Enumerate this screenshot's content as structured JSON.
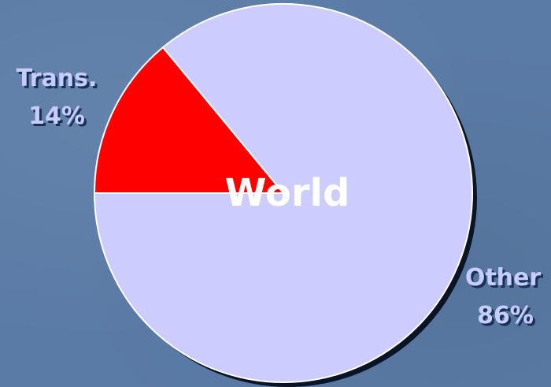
{
  "chart_data": {
    "type": "pie",
    "title": "",
    "center_label": "World",
    "slices": [
      {
        "name": "Trans.",
        "value": 14,
        "value_label": "14%",
        "color": "#ff0000"
      },
      {
        "name": "Other",
        "value": 86,
        "value_label": "86%",
        "color": "#ccccff"
      }
    ]
  },
  "colors": {
    "background": "#5a7ba6",
    "label_text": "#c6cdf8",
    "label_shadow": "#17305c",
    "center_text": "#ffffff",
    "slice_outline": "#ffffff"
  }
}
